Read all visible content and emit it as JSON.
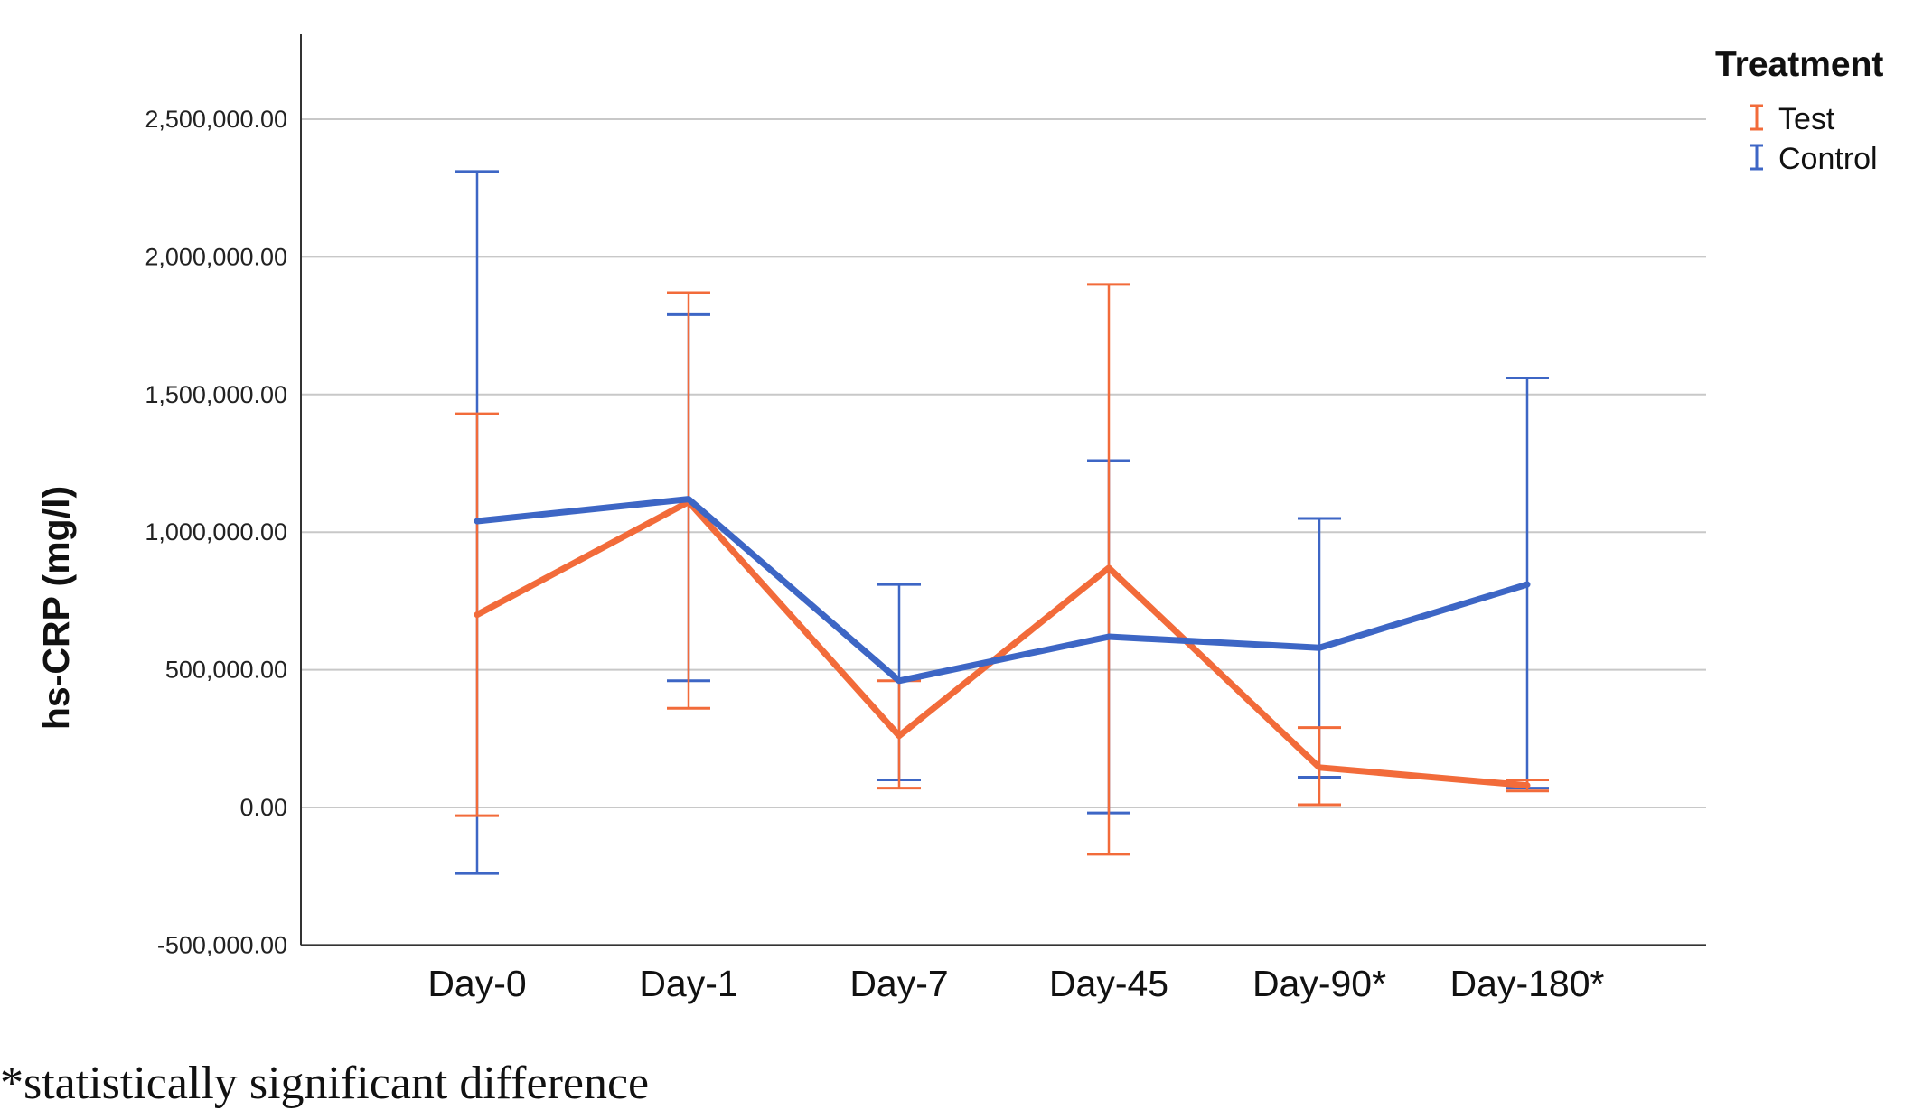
{
  "chart_data": {
    "type": "line",
    "categories": [
      "Day-0",
      "Day-1",
      "Day-7",
      "Day-45",
      "Day-90*",
      "Day-180*"
    ],
    "ylabel": "hs-CRP (mg/l)",
    "xlabel": "",
    "ylim": [
      -500000,
      2800000
    ],
    "yticks": [
      -500000,
      0,
      500000,
      1000000,
      1500000,
      2000000,
      2500000
    ],
    "ytick_labels": [
      "-500,000.00",
      "0.00",
      "500,000.00",
      "1,000,000.00",
      "1,500,000.00",
      "2,000,000.00",
      "2,500,000.00"
    ],
    "grid": true,
    "legend": {
      "title": "Treatment",
      "placement": "top-right"
    },
    "series": [
      {
        "name": "Test",
        "color": "#f26b3a",
        "values": [
          700000,
          1110000,
          260000,
          870000,
          145000,
          80000
        ],
        "err_low": [
          -30000,
          360000,
          70000,
          -170000,
          10000,
          60000
        ],
        "err_high": [
          1430000,
          1870000,
          460000,
          1900000,
          290000,
          100000
        ]
      },
      {
        "name": "Control",
        "color": "#3d66c5",
        "values": [
          1040000,
          1120000,
          460000,
          620000,
          580000,
          810000
        ],
        "err_low": [
          -240000,
          460000,
          100000,
          -20000,
          110000,
          70000
        ],
        "err_high": [
          2310000,
          1790000,
          810000,
          1260000,
          1050000,
          1560000
        ]
      }
    ]
  },
  "footnote": "*statistically significant difference"
}
